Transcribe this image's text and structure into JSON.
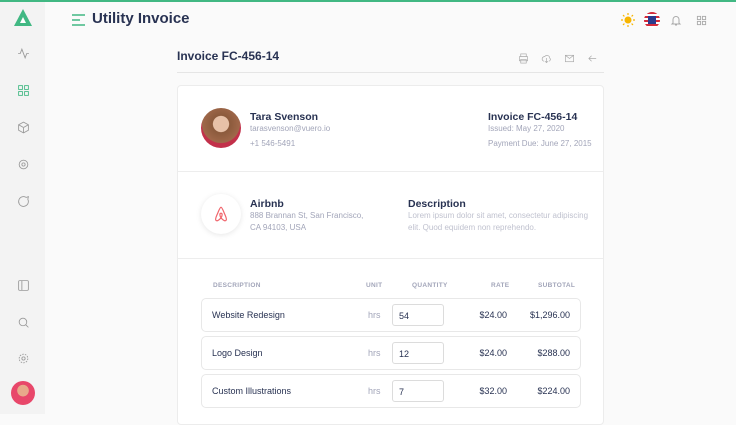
{
  "header": {
    "title": "Utility Invoice"
  },
  "page": {
    "title": "Invoice FC-456-14"
  },
  "customer": {
    "name": "Tara Svenson",
    "email": "tarasvenson@vuero.io",
    "phone": "+1 546-5491"
  },
  "invoice": {
    "title": "Invoice FC-456-14",
    "issued": "Issued: May 27, 2020",
    "due": "Payment Due: June 27, 2015"
  },
  "company": {
    "name": "Airbnb",
    "address1": "888 Brannan St, San Francisco,",
    "address2": "CA 94103, USA"
  },
  "description": {
    "title": "Description",
    "text1": "Lorem ipsum dolor sit amet, consectetur adipiscing",
    "text2": "elit. Quod equidem non reprehendo."
  },
  "table": {
    "headers": [
      "DESCRIPTION",
      "UNIT",
      "QUANTITY",
      "RATE",
      "SUBTOTAL"
    ],
    "rows": [
      {
        "desc": "Website Redesign",
        "unit": "hrs",
        "qty": "54",
        "rate": "$24.00",
        "subtotal": "$1,296.00"
      },
      {
        "desc": "Logo Design",
        "unit": "hrs",
        "qty": "12",
        "rate": "$24.00",
        "subtotal": "$288.00"
      },
      {
        "desc": "Custom Illustrations",
        "unit": "hrs",
        "qty": "7",
        "rate": "$32.00",
        "subtotal": "$224.00"
      }
    ]
  },
  "colors": {
    "accent": "#41b883",
    "text": "#283252",
    "muted": "#a2a5b9"
  }
}
